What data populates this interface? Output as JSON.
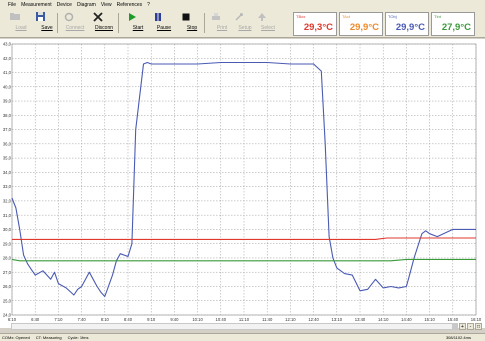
{
  "menu": [
    "File",
    "Measurement",
    "Device",
    "Diagram",
    "View",
    "References",
    "?"
  ],
  "toolbar": {
    "buttons": [
      {
        "label": "Load",
        "icon": "folder-icon",
        "enabled": false
      },
      {
        "label": "Save",
        "icon": "save-icon",
        "enabled": true
      },
      {
        "label": "Connect",
        "icon": "connect-icon",
        "enabled": false
      },
      {
        "label": "Disconn",
        "icon": "disconnect-icon",
        "enabled": true
      },
      {
        "label": "Start",
        "icon": "play-icon",
        "enabled": true
      },
      {
        "label": "Pause",
        "icon": "pause-icon",
        "enabled": true
      },
      {
        "label": "Stop",
        "icon": "stop-icon",
        "enabled": true
      },
      {
        "label": "Print",
        "icon": "print-icon",
        "enabled": false
      },
      {
        "label": "Setup",
        "icon": "setup-icon",
        "enabled": false
      },
      {
        "label": "Select",
        "icon": "select-icon",
        "enabled": false
      }
    ]
  },
  "readouts": [
    {
      "label": "TBox",
      "value": "29,3°C",
      "color": "#e0392e"
    },
    {
      "label": "TAct",
      "value": "29,9°C",
      "color": "#f08a2a"
    },
    {
      "label": "TObj",
      "value": "29,9°C",
      "color": "#4a5bb3"
    },
    {
      "label": "TInt",
      "value": "27,9°C",
      "color": "#3a9a3a"
    }
  ],
  "status": {
    "com": "COMx: Opened",
    "mode": "CT: Measuring",
    "cycle": "Cycle: 1fms",
    "right": "308/1102.4ms"
  },
  "chart_data": {
    "type": "line",
    "ylim": [
      24.0,
      43.0
    ],
    "yticks": [
      "43,0",
      "42,0",
      "41,0",
      "40,0",
      "39,0",
      "38,0",
      "37,0",
      "36,0",
      "35,0",
      "34,0",
      "33,0",
      "32,0",
      "31,0",
      "30,0",
      "29,0",
      "28,0",
      "27,0",
      "26,0",
      "25,0",
      "24,0"
    ],
    "xlim": [
      "6:10",
      "16:10"
    ],
    "xticks": [
      "6:10",
      "6:40",
      "7:10",
      "7:40",
      "8:10",
      "8:40",
      "9:10",
      "9:40",
      "10:10",
      "10:40",
      "11:10",
      "11:40",
      "12:10",
      "12:40",
      "13:10",
      "13:40",
      "14:10",
      "14:40",
      "15:10",
      "15:40",
      "16:10"
    ],
    "grid": true,
    "series": [
      {
        "color": "#4a5bb3",
        "x": [
          "6:10",
          "6:15",
          "6:20",
          "6:25",
          "6:30",
          "6:35",
          "6:40",
          "6:50",
          "7:00",
          "7:05",
          "7:10",
          "7:20",
          "7:30",
          "7:35",
          "7:40",
          "7:50",
          "8:00",
          "8:05",
          "8:10",
          "8:20",
          "8:25",
          "8:30",
          "8:40",
          "8:45",
          "8:50",
          "9:00",
          "9:05",
          "9:10",
          "9:20",
          "9:30",
          "9:40",
          "10:10",
          "10:40",
          "11:10",
          "11:40",
          "12:10",
          "12:40",
          "12:50",
          "12:55",
          "13:00",
          "13:05",
          "13:10",
          "13:20",
          "13:30",
          "13:40",
          "13:50",
          "14:00",
          "14:10",
          "14:20",
          "14:30",
          "14:40",
          "14:45",
          "14:50",
          "15:00",
          "15:05",
          "15:10",
          "15:20",
          "15:40",
          "16:10"
        ],
        "y": [
          32.2,
          31.5,
          30.0,
          28.2,
          27.6,
          27.2,
          26.8,
          27.1,
          26.5,
          27.0,
          26.2,
          25.9,
          25.4,
          25.8,
          26.0,
          27.0,
          26.0,
          25.6,
          25.3,
          26.8,
          27.8,
          28.3,
          28.1,
          29.0,
          37.0,
          41.6,
          41.7,
          41.6,
          41.6,
          41.6,
          41.6,
          41.6,
          41.7,
          41.7,
          41.7,
          41.6,
          41.6,
          41.1,
          36.0,
          29.5,
          28.0,
          27.3,
          26.9,
          26.8,
          25.7,
          25.8,
          26.5,
          25.9,
          26.0,
          25.9,
          26.0,
          27.0,
          28.0,
          29.7,
          29.9,
          29.7,
          29.5,
          30.0,
          30.0
        ]
      },
      {
        "color": "#e0392e",
        "x": [
          "6:10",
          "6:20",
          "14:00",
          "14:15",
          "16:10"
        ],
        "y": [
          29.3,
          29.3,
          29.3,
          29.4,
          29.4
        ]
      },
      {
        "color": "#3a9a3a",
        "x": [
          "6:10",
          "6:20",
          "14:20",
          "14:40",
          "16:10"
        ],
        "y": [
          27.9,
          27.8,
          27.8,
          27.9,
          27.9
        ]
      }
    ]
  }
}
